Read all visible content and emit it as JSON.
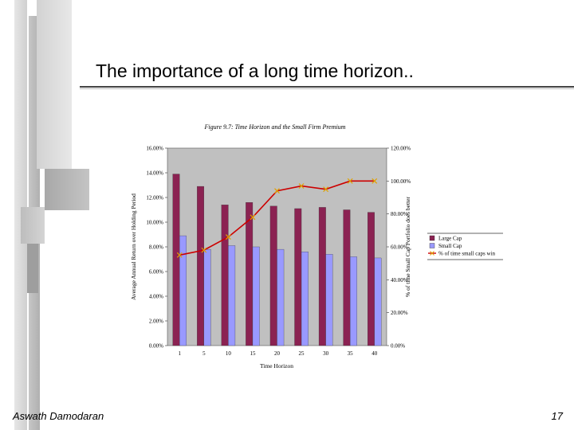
{
  "slide": {
    "title": "The importance of a long time horizon..",
    "author": "Aswath Damodaran",
    "page_number": "17"
  },
  "chart_data": {
    "type": "bar",
    "title": "Figure 9.7: Time Horizon and the Small Firm Premium",
    "xlabel": "Time Horizon",
    "ylabel": "Average Annual Return over Holding Period",
    "y2label": "% of time Small Cap Portfolio does better",
    "categories": [
      "1",
      "5",
      "10",
      "15",
      "20",
      "25",
      "30",
      "35",
      "40"
    ],
    "ylim": [
      0,
      16
    ],
    "y2lim": [
      0,
      120
    ],
    "y_ticks": [
      "0.00%",
      "2.00%",
      "4.00%",
      "6.00%",
      "8.00%",
      "10.00%",
      "12.00%",
      "14.00%",
      "16.00%"
    ],
    "y2_ticks": [
      "0.00%",
      "20.00%",
      "40.00%",
      "60.00%",
      "80.00%",
      "100.00%",
      "120.00%"
    ],
    "series": [
      {
        "name": "Large Cap",
        "kind": "bar",
        "axis": "left",
        "color": "#8b2252",
        "values": [
          13.9,
          12.9,
          11.4,
          11.6,
          11.3,
          11.1,
          11.2,
          11.0,
          10.8
        ]
      },
      {
        "name": "Small Cap",
        "kind": "bar",
        "axis": "left",
        "color": "#9999ff",
        "values": [
          8.9,
          7.8,
          8.1,
          8.0,
          7.8,
          7.6,
          7.4,
          7.2,
          7.1
        ]
      },
      {
        "name": "% of time small caps win",
        "kind": "line",
        "axis": "right",
        "color": "#cc0000",
        "values": [
          55,
          58,
          66,
          78,
          94,
          97,
          95,
          100,
          100
        ]
      }
    ],
    "grid": false,
    "legend_position": "right"
  }
}
